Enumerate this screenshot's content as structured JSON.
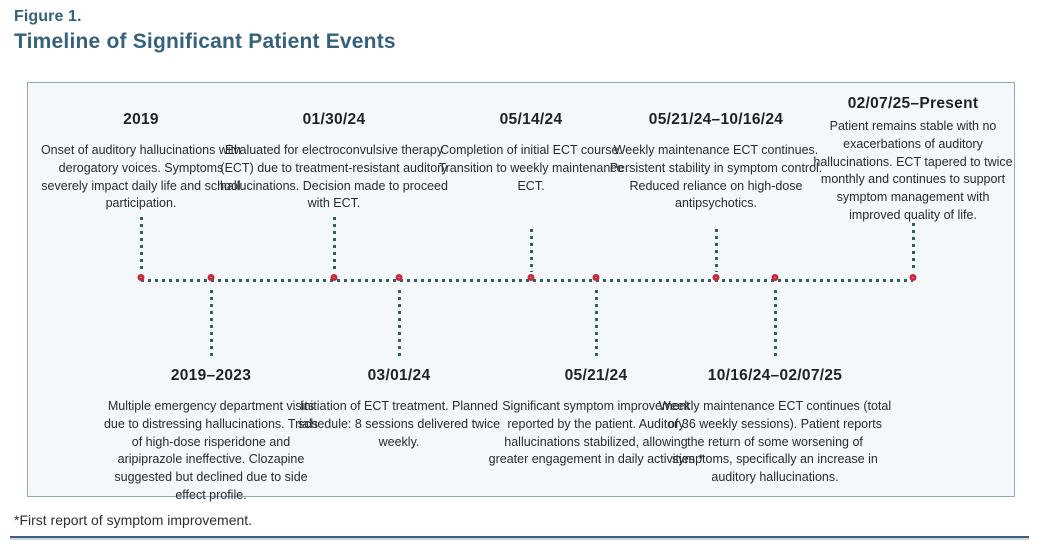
{
  "figure": {
    "label": "Figure 1.",
    "title": "Timeline of Significant Patient Events"
  },
  "footnote": "*First report of symptom improvement.",
  "colors": {
    "title_blue": "#35617d",
    "dotted_line_green": "#2e6355",
    "marker_ring_red": "#c8293b",
    "panel_background": "#f4f8fb",
    "panel_border": "#8fa9bc"
  },
  "timeline": {
    "events_top": [
      {
        "date": "2019",
        "description": "Onset of auditory hallucinations with derogatory voices. Symptoms severely impact daily life and school participation."
      },
      {
        "date": "01/30/24",
        "description": "Evaluated for electroconvulsive therapy (ECT) due to treatment-resistant auditory hallucinations. Decision made to proceed with ECT."
      },
      {
        "date": "05/14/24",
        "description": "Completion of initial ECT course. Transition to weekly maintenance ECT."
      },
      {
        "date": "05/21/24–10/16/24",
        "description": "Weekly maintenance ECT continues. Persistent stability in symptom control. Reduced reliance on high-dose antipsychotics."
      },
      {
        "date": "02/07/25–Present",
        "description": "Patient remains stable with no exacerbations of auditory hallucinations. ECT tapered to twice monthly and continues to support symptom management with improved quality of life."
      }
    ],
    "events_bottom": [
      {
        "date": "2019–2023",
        "description": "Multiple emergency department visits due to distressing hallucinations. Trials of high-dose risperidone and aripiprazole ineffective. Clozapine suggested but declined due to side effect profile."
      },
      {
        "date": "03/01/24",
        "description": "Initiation of ECT treatment. Planned schedule: 8 sessions delivered twice weekly."
      },
      {
        "date": "05/21/24",
        "description": "Significant symptom improvement reported by the patient. Auditory hallucinations stabilized, allowing greater engagement in daily activities.*"
      },
      {
        "date": "10/16/24–02/07/25",
        "description": "Weekly maintenance ECT continues (total of 36 weekly sessions). Patient reports the return of some worsening of symptoms, specifically an increase in auditory hallucinations."
      }
    ]
  }
}
